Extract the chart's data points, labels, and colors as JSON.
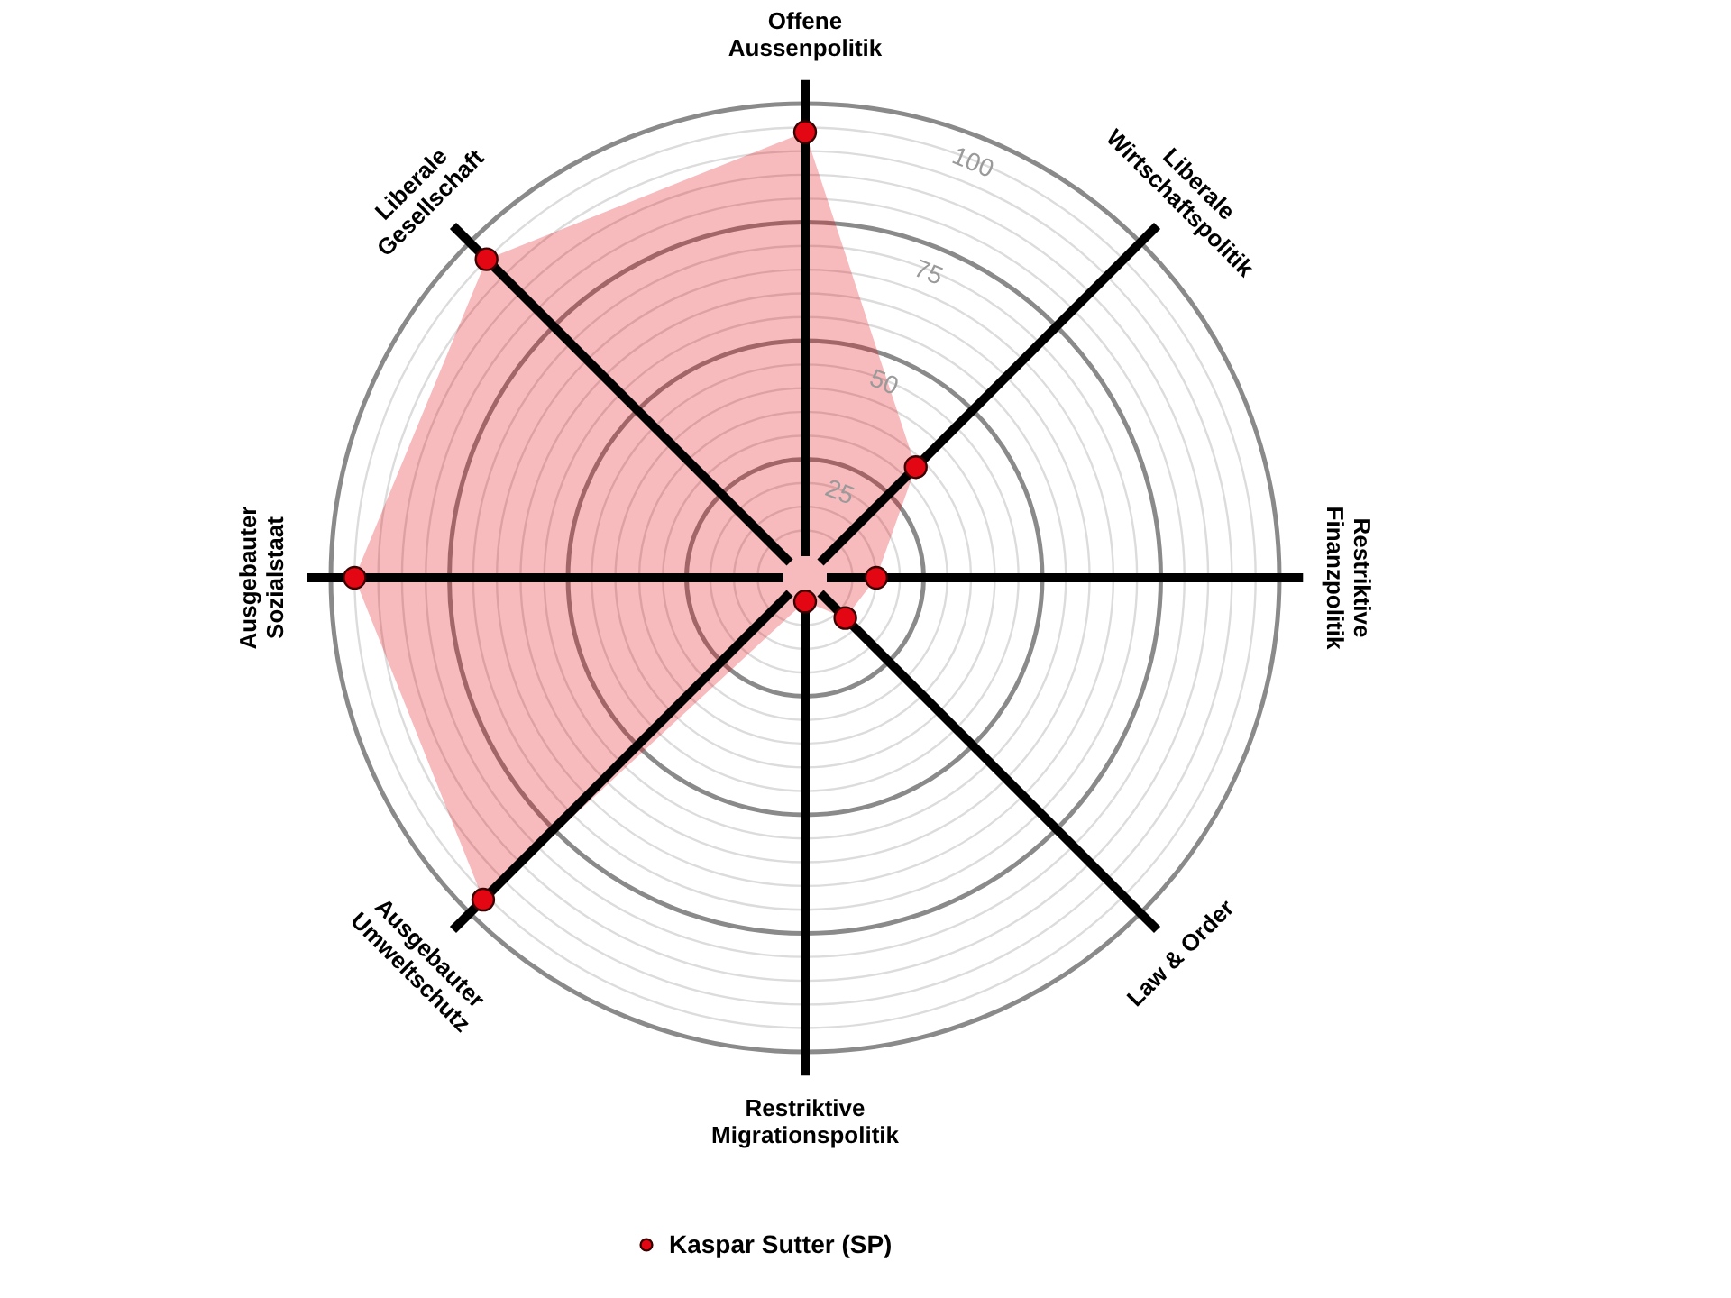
{
  "chart_data": {
    "type": "radar",
    "categories": [
      "Offene\nAussenpolitik",
      "Liberale\nWirtschaftspolitik",
      "Restriktive\nFinanzpolitik",
      "Law & Order",
      "Restriktive\nMigrationspolitik",
      "Ausgebauter\nUmweltschutz",
      "Ausgebauter\nSozialstaat",
      "Liberale\nGesellschaft"
    ],
    "series": [
      {
        "name": "Kaspar Sutter (SP)",
        "color": "#e30613",
        "values": [
          94,
          33,
          15,
          12,
          5,
          96,
          95,
          95
        ]
      }
    ],
    "ylim": [
      0,
      100
    ],
    "yticks": [
      25,
      50,
      75,
      100
    ],
    "grid": true,
    "marker": "circle",
    "legend": "bottom"
  }
}
